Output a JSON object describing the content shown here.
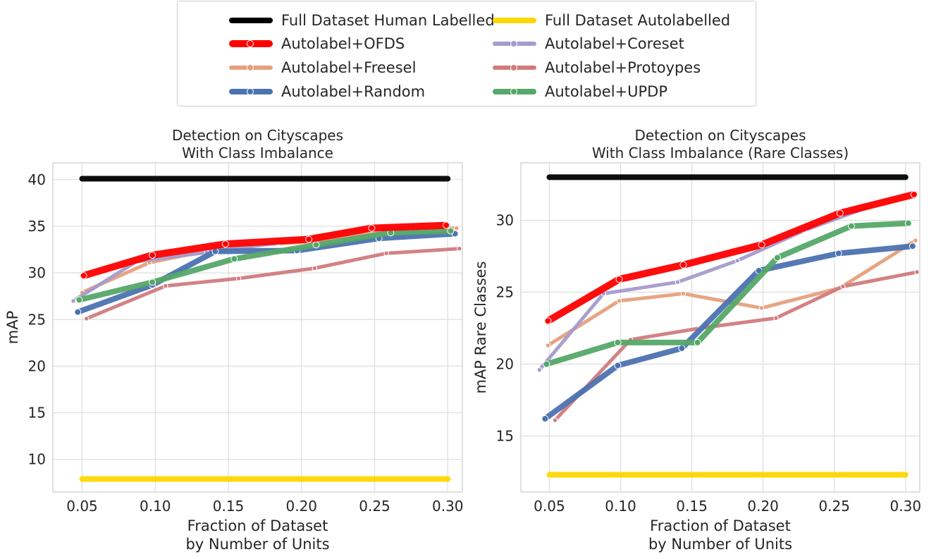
{
  "legend": {
    "items": [
      {
        "label": "Full Dataset Human Labelled",
        "color": "#000000"
      },
      {
        "label": "Full Dataset Autolabelled",
        "color": "#FFD700"
      },
      {
        "label": "Autolabel+OFDS",
        "color": "#FF0000"
      },
      {
        "label": "Autolabel+Coreset",
        "color": "#A59BCC"
      },
      {
        "label": "Autolabel+Freesel",
        "color": "#E6A07C"
      },
      {
        "label": "Autolabel+Protoypes",
        "color": "#D17B7D"
      },
      {
        "label": "Autolabel+Random",
        "color": "#4C72B0"
      },
      {
        "label": "Autolabel+UPDP",
        "color": "#55A868"
      }
    ]
  },
  "chart_data": [
    {
      "type": "line",
      "title": "Detection on Cityscapes\nWith Class Imbalance",
      "title_lines": [
        "Detection on Cityscapes",
        "With Class Imbalance"
      ],
      "xlabel_lines": [
        "Fraction of Dataset",
        "by Number of Units"
      ],
      "ylabel": "mAP",
      "xlim": [
        0.03,
        0.31
      ],
      "ylim": [
        6.5,
        41.8
      ],
      "xticks": [
        0.05,
        0.1,
        0.15,
        0.2,
        0.25,
        0.3
      ],
      "xtick_labels": [
        "0.05",
        "0.10",
        "0.15",
        "0.20",
        "0.25",
        "0.30"
      ],
      "yticks": [
        10,
        15,
        20,
        25,
        30,
        35,
        40
      ],
      "ytick_labels": [
        "10",
        "15",
        "20",
        "25",
        "30",
        "35",
        "40"
      ],
      "series": [
        {
          "name": "Full Dataset Human Labelled",
          "color": "#000000",
          "width": 8,
          "markers": false,
          "x": [
            0.05,
            0.3
          ],
          "y": [
            40.1,
            40.1
          ]
        },
        {
          "name": "Full Dataset Autolabelled",
          "color": "#FFD700",
          "width": 8,
          "markers": false,
          "x": [
            0.05,
            0.3
          ],
          "y": [
            7.9,
            7.9
          ]
        },
        {
          "name": "Autolabel+Freesel",
          "color": "#E6A07C",
          "width": 5,
          "markers": true,
          "x": [
            0.05,
            0.096,
            0.149,
            0.202,
            0.255,
            0.306
          ],
          "y": [
            27.9,
            31.1,
            32.8,
            33.3,
            34.3,
            34.8
          ]
        },
        {
          "name": "Autolabel+Protoypes",
          "color": "#D17B7D",
          "width": 5,
          "markers": true,
          "x": [
            0.053,
            0.107,
            0.157,
            0.209,
            0.258,
            0.308
          ],
          "y": [
            25.1,
            28.6,
            29.4,
            30.5,
            32.1,
            32.6
          ]
        },
        {
          "name": "Autolabel+Coreset",
          "color": "#A59BCC",
          "width": 5,
          "markers": true,
          "x": [
            0.044,
            0.087,
            0.135,
            0.184,
            0.228,
            0.276
          ],
          "y": [
            27.0,
            31.2,
            32.2,
            33.2,
            34.3,
            35.0
          ]
        },
        {
          "name": "Autolabel+Random",
          "color": "#4C72B0",
          "width": 8,
          "markers": true,
          "x": [
            0.047,
            0.098,
            0.141,
            0.197,
            0.253,
            0.305
          ],
          "y": [
            25.8,
            28.7,
            32.3,
            32.4,
            33.7,
            34.2
          ]
        },
        {
          "name": "Autolabel+UPDP",
          "color": "#55A868",
          "width": 8,
          "markers": true,
          "x": [
            0.048,
            0.098,
            0.154,
            0.21,
            0.261,
            0.302
          ],
          "y": [
            27.1,
            29.0,
            31.5,
            33.0,
            34.3,
            34.5
          ]
        },
        {
          "name": "Autolabel+OFDS",
          "color": "#FF0000",
          "width": 10,
          "markers": true,
          "x": [
            0.051,
            0.098,
            0.148,
            0.205,
            0.248,
            0.299
          ],
          "y": [
            29.7,
            31.9,
            33.1,
            33.6,
            34.8,
            35.1
          ]
        }
      ]
    },
    {
      "type": "line",
      "title": "Detection on Cityscapes\nWith Class Imbalance (Rare Classes)",
      "title_lines": [
        "Detection on Cityscapes",
        "With Class Imbalance (Rare Classes)"
      ],
      "xlabel_lines": [
        "Fraction of Dataset",
        "by Number of Units"
      ],
      "ylabel": "mAP Rare Classes",
      "xlim": [
        0.03,
        0.31
      ],
      "ylim": [
        11.1,
        34.0
      ],
      "xticks": [
        0.05,
        0.1,
        0.15,
        0.2,
        0.25,
        0.3
      ],
      "xtick_labels": [
        "0.05",
        "0.10",
        "0.15",
        "0.20",
        "0.25",
        "0.30"
      ],
      "yticks": [
        15,
        20,
        25,
        30
      ],
      "ytick_labels": [
        "15",
        "20",
        "25",
        "30"
      ],
      "series": [
        {
          "name": "Full Dataset Human Labelled",
          "color": "#000000",
          "width": 8,
          "markers": false,
          "x": [
            0.05,
            0.3
          ],
          "y": [
            33.0,
            33.0
          ]
        },
        {
          "name": "Full Dataset Autolabelled",
          "color": "#FFD700",
          "width": 8,
          "markers": false,
          "x": [
            0.05,
            0.3
          ],
          "y": [
            12.3,
            12.3
          ]
        },
        {
          "name": "Autolabel+Freesel",
          "color": "#E6A07C",
          "width": 5,
          "markers": true,
          "x": [
            0.049,
            0.099,
            0.144,
            0.199,
            0.254,
            0.307
          ],
          "y": [
            21.3,
            24.4,
            24.9,
            23.9,
            25.3,
            28.6
          ]
        },
        {
          "name": "Autolabel+Protoypes",
          "color": "#D17B7D",
          "width": 5,
          "markers": true,
          "x": [
            0.054,
            0.107,
            0.156,
            0.209,
            0.256,
            0.308
          ],
          "y": [
            16.1,
            21.7,
            22.5,
            23.2,
            25.4,
            26.4
          ]
        },
        {
          "name": "Autolabel+Coreset",
          "color": "#A59BCC",
          "width": 5,
          "markers": true,
          "x": [
            0.043,
            0.088,
            0.14,
            0.182,
            0.229,
            0.276
          ],
          "y": [
            19.6,
            24.9,
            25.7,
            27.2,
            29.3,
            31.0
          ]
        },
        {
          "name": "Autolabel+Random",
          "color": "#4C72B0",
          "width": 8,
          "markers": true,
          "x": [
            0.047,
            0.098,
            0.143,
            0.197,
            0.253,
            0.305
          ],
          "y": [
            16.2,
            19.9,
            21.1,
            26.5,
            27.7,
            28.2
          ]
        },
        {
          "name": "Autolabel+UPDP",
          "color": "#55A868",
          "width": 8,
          "markers": true,
          "x": [
            0.048,
            0.098,
            0.154,
            0.21,
            0.262,
            0.302
          ],
          "y": [
            20.0,
            21.5,
            21.5,
            27.4,
            29.6,
            29.8
          ]
        },
        {
          "name": "Autolabel+OFDS",
          "color": "#FF0000",
          "width": 10,
          "markers": true,
          "x": [
            0.049,
            0.099,
            0.144,
            0.199,
            0.254,
            0.306
          ],
          "y": [
            23.0,
            25.9,
            26.9,
            28.3,
            30.5,
            31.8
          ]
        }
      ]
    }
  ]
}
